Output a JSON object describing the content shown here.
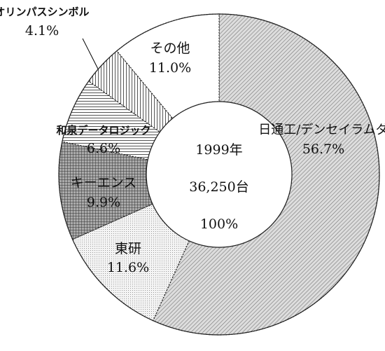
{
  "chart_data": {
    "type": "pie",
    "hole": true,
    "categories": [
      "日通工/デンセイラムダ",
      "東研",
      "キーエンス",
      "和泉データロジック",
      "オリンパスシンボル",
      "その他"
    ],
    "values": [
      56.7,
      11.6,
      9.9,
      6.6,
      4.1,
      11.0
    ],
    "value_labels": [
      "56.7%",
      "11.6%",
      "9.9%",
      "6.6%",
      "4.1%",
      "11.0%"
    ],
    "center_labels": [
      "1999年",
      "36,250台",
      "100%"
    ]
  }
}
